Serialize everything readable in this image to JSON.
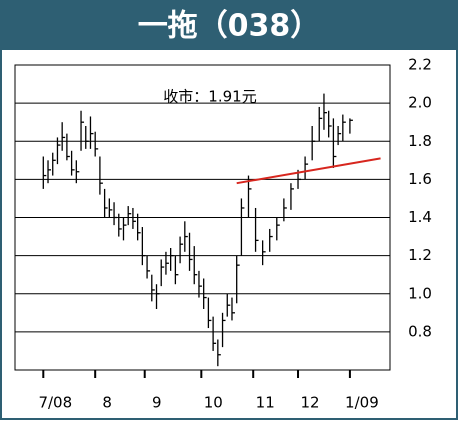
{
  "chart_data": {
    "type": "hlc",
    "title": "一拖（038）",
    "annotation": "收市：1.91元",
    "x": [
      0,
      2,
      4,
      6,
      8,
      10,
      12,
      14,
      16,
      18,
      20,
      22,
      24,
      26,
      28,
      30,
      32,
      34,
      36,
      38,
      40,
      42,
      44,
      46,
      48,
      50,
      52,
      54,
      56,
      58,
      60,
      62,
      64,
      66,
      68,
      70,
      72,
      74,
      76,
      78,
      80,
      82,
      84,
      87,
      90,
      93,
      96,
      99,
      102,
      105,
      108,
      111,
      114,
      117,
      119,
      121,
      123,
      125,
      127,
      130
    ],
    "high": [
      1.72,
      1.7,
      1.74,
      1.82,
      1.9,
      1.84,
      1.75,
      1.7,
      1.96,
      1.88,
      1.93,
      1.85,
      1.72,
      1.55,
      1.5,
      1.48,
      1.42,
      1.4,
      1.46,
      1.45,
      1.42,
      1.35,
      1.2,
      1.1,
      1.05,
      1.18,
      1.22,
      1.24,
      1.2,
      1.3,
      1.38,
      1.32,
      1.25,
      1.12,
      1.08,
      0.98,
      0.88,
      0.76,
      0.9,
      1.0,
      0.98,
      1.2,
      1.5,
      1.62,
      1.45,
      1.28,
      1.34,
      1.4,
      1.5,
      1.58,
      1.65,
      1.72,
      1.88,
      1.98,
      2.05,
      1.96,
      1.92,
      1.88,
      1.94,
      1.92
    ],
    "low": [
      1.55,
      1.58,
      1.62,
      1.68,
      1.75,
      1.7,
      1.62,
      1.58,
      1.75,
      1.76,
      1.76,
      1.72,
      1.52,
      1.4,
      1.4,
      1.36,
      1.3,
      1.28,
      1.36,
      1.34,
      1.28,
      1.15,
      1.08,
      0.96,
      0.92,
      1.04,
      1.1,
      1.12,
      1.05,
      1.16,
      1.22,
      1.12,
      1.05,
      0.98,
      0.92,
      0.82,
      0.7,
      0.62,
      0.72,
      0.88,
      0.86,
      0.95,
      1.2,
      1.4,
      1.22,
      1.15,
      1.22,
      1.28,
      1.38,
      1.44,
      1.55,
      1.6,
      1.7,
      1.8,
      1.86,
      1.82,
      1.66,
      1.78,
      1.8,
      1.84
    ],
    "close": [
      1.62,
      1.65,
      1.7,
      1.78,
      1.82,
      1.72,
      1.65,
      1.64,
      1.9,
      1.8,
      1.84,
      1.76,
      1.58,
      1.45,
      1.44,
      1.4,
      1.34,
      1.36,
      1.42,
      1.38,
      1.32,
      1.2,
      1.12,
      1.02,
      1.0,
      1.14,
      1.16,
      1.2,
      1.1,
      1.26,
      1.3,
      1.18,
      1.1,
      1.04,
      0.98,
      0.86,
      0.74,
      0.68,
      0.86,
      0.94,
      0.9,
      1.15,
      1.45,
      1.55,
      1.28,
      1.22,
      1.3,
      1.36,
      1.45,
      1.55,
      1.6,
      1.68,
      1.8,
      1.92,
      1.95,
      1.88,
      1.72,
      1.84,
      1.9,
      1.91
    ],
    "color": "#000000",
    "trendline": {
      "x": [
        82,
        143
      ],
      "values": [
        1.58,
        1.71
      ],
      "color": "#d7261e"
    },
    "xlim": [
      -12,
      147
    ],
    "xticks": [
      {
        "value": 0,
        "label": "7/08"
      },
      {
        "value": 22,
        "label": "8"
      },
      {
        "value": 43,
        "label": "9"
      },
      {
        "value": 67,
        "label": "10"
      },
      {
        "value": 89,
        "label": "11"
      },
      {
        "value": 108,
        "label": "12"
      },
      {
        "value": 130,
        "label": "1/09"
      }
    ],
    "ylim": [
      0.6,
      2.2
    ],
    "yticks": [
      {
        "value": 0.8,
        "label": "0.8"
      },
      {
        "value": 1.0,
        "label": "1.0"
      },
      1.2,
      1.4,
      1.6,
      1.8,
      {
        "value": 2.0,
        "label": "2.0"
      },
      2.2
    ],
    "grid": true
  }
}
